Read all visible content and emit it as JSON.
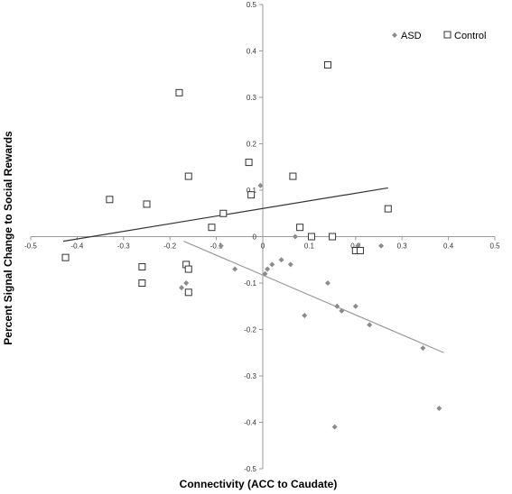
{
  "chart_data": {
    "type": "scatter",
    "title": "",
    "xlabel": "Connectivity (ACC to Caudate)",
    "ylabel": "Percent Signal Change to Social Rewards",
    "xlim": [
      -0.5,
      0.5
    ],
    "ylim": [
      -0.5,
      0.5
    ],
    "x_ticks": [
      "-0.5",
      "-0.4",
      "-0.3",
      "-0.2",
      "-0.1",
      "0",
      "0.1",
      "0.2",
      "0.3",
      "0.4",
      "0.5"
    ],
    "y_ticks": [
      "-0.5",
      "-0.4",
      "-0.3",
      "-0.2",
      "-0.1",
      "0",
      "0.1",
      "0.2",
      "0.3",
      "0.4",
      "0.5"
    ],
    "grid": false,
    "legend_position": "top-right",
    "series": [
      {
        "name": "ASD",
        "marker": "diamond",
        "color": "#8c8c8c",
        "points": [
          [
            -0.09,
            -0.02
          ],
          [
            -0.06,
            -0.07
          ],
          [
            -0.005,
            0.11
          ],
          [
            0.005,
            -0.08
          ],
          [
            0.01,
            -0.07
          ],
          [
            0.02,
            -0.06
          ],
          [
            0.04,
            -0.05
          ],
          [
            0.06,
            -0.06
          ],
          [
            0.07,
            0.0
          ],
          [
            0.09,
            -0.17
          ],
          [
            0.14,
            -0.1
          ],
          [
            0.16,
            -0.15
          ],
          [
            0.17,
            -0.16
          ],
          [
            0.2,
            -0.15
          ],
          [
            0.23,
            -0.19
          ],
          [
            0.255,
            -0.02
          ],
          [
            0.345,
            -0.24
          ],
          [
            0.38,
            -0.37
          ],
          [
            0.155,
            -0.41
          ],
          [
            0.205,
            -0.02
          ],
          [
            -0.175,
            -0.11
          ],
          [
            -0.165,
            -0.1
          ]
        ],
        "trendline": [
          [
            -0.17,
            -0.01
          ],
          [
            0.39,
            -0.25
          ]
        ]
      },
      {
        "name": "Control",
        "marker": "square",
        "color": "#333333",
        "points": [
          [
            -0.425,
            -0.045
          ],
          [
            -0.33,
            0.08
          ],
          [
            -0.26,
            -0.065
          ],
          [
            -0.26,
            -0.1
          ],
          [
            -0.25,
            0.07
          ],
          [
            -0.18,
            0.31
          ],
          [
            -0.165,
            -0.06
          ],
          [
            -0.16,
            0.13
          ],
          [
            -0.16,
            -0.07
          ],
          [
            -0.16,
            -0.12
          ],
          [
            -0.11,
            0.02
          ],
          [
            -0.085,
            0.05
          ],
          [
            -0.03,
            0.16
          ],
          [
            -0.025,
            0.09
          ],
          [
            0.065,
            0.13
          ],
          [
            0.08,
            0.02
          ],
          [
            0.105,
            0.0
          ],
          [
            0.14,
            0.37
          ],
          [
            0.15,
            0.0
          ],
          [
            0.2,
            -0.03
          ],
          [
            0.21,
            -0.03
          ],
          [
            0.27,
            0.06
          ]
        ],
        "trendline": [
          [
            -0.43,
            -0.01
          ],
          [
            0.27,
            0.105
          ]
        ]
      }
    ]
  }
}
